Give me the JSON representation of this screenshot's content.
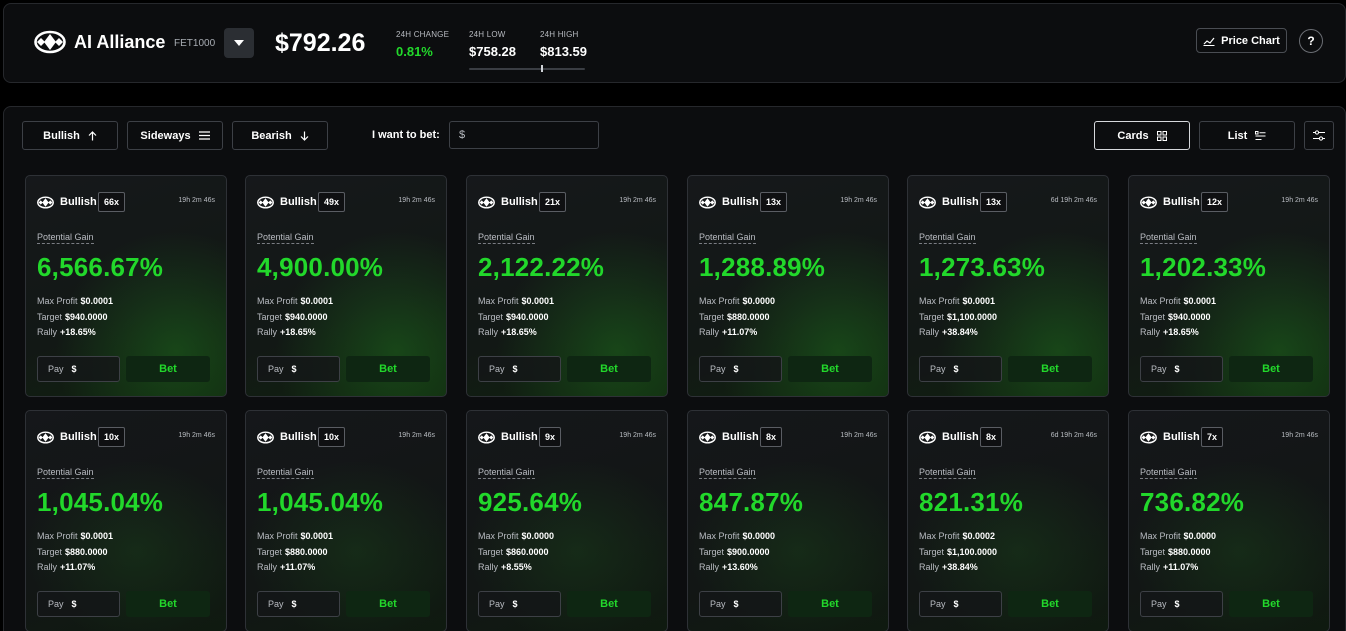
{
  "header": {
    "brand": "AI Alliance",
    "ticker": "FET1000",
    "price": "$792.26",
    "change_label": "24H CHANGE",
    "change_value": "0.81%",
    "low_label": "24H LOW",
    "low_value": "$758.28",
    "high_label": "24H HIGH",
    "high_value": "$813.59",
    "price_chart_label": "Price Chart",
    "help_label": "?"
  },
  "toolbar": {
    "bullish_label": "Bullish",
    "sideways_label": "Sideways",
    "bearish_label": "Bearish",
    "bet_label": "I want to bet:",
    "bet_placeholder": "$",
    "cards_label": "Cards",
    "list_label": "List"
  },
  "card_labels": {
    "potential_gain": "Potential Gain",
    "max_profit": "Max Profit",
    "target": "Target",
    "rally": "Rally",
    "pay": "Pay",
    "currency": "$",
    "bet": "Bet"
  },
  "cards": [
    {
      "direction": "Bullish",
      "multiplier": "66x",
      "time": "19h 2m 46s",
      "gain": "6,566.67%",
      "max_profit": "$0.0001",
      "target": "$940.0000",
      "rally": "+18.65%"
    },
    {
      "direction": "Bullish",
      "multiplier": "49x",
      "time": "19h 2m 46s",
      "gain": "4,900.00%",
      "max_profit": "$0.0001",
      "target": "$940.0000",
      "rally": "+18.65%"
    },
    {
      "direction": "Bullish",
      "multiplier": "21x",
      "time": "19h 2m 46s",
      "gain": "2,122.22%",
      "max_profit": "$0.0001",
      "target": "$940.0000",
      "rally": "+18.65%"
    },
    {
      "direction": "Bullish",
      "multiplier": "13x",
      "time": "19h 2m 46s",
      "gain": "1,288.89%",
      "max_profit": "$0.0000",
      "target": "$880.0000",
      "rally": "+11.07%"
    },
    {
      "direction": "Bullish",
      "multiplier": "13x",
      "time": "6d 19h 2m 46s",
      "gain": "1,273.63%",
      "max_profit": "$0.0001",
      "target": "$1,100.0000",
      "rally": "+38.84%"
    },
    {
      "direction": "Bullish",
      "multiplier": "12x",
      "time": "19h 2m 46s",
      "gain": "1,202.33%",
      "max_profit": "$0.0001",
      "target": "$940.0000",
      "rally": "+18.65%"
    },
    {
      "direction": "Bullish",
      "multiplier": "10x",
      "time": "19h 2m 46s",
      "gain": "1,045.04%",
      "max_profit": "$0.0001",
      "target": "$880.0000",
      "rally": "+11.07%"
    },
    {
      "direction": "Bullish",
      "multiplier": "10x",
      "time": "19h 2m 46s",
      "gain": "1,045.04%",
      "max_profit": "$0.0001",
      "target": "$880.0000",
      "rally": "+11.07%"
    },
    {
      "direction": "Bullish",
      "multiplier": "9x",
      "time": "19h 2m 46s",
      "gain": "925.64%",
      "max_profit": "$0.0000",
      "target": "$860.0000",
      "rally": "+8.55%"
    },
    {
      "direction": "Bullish",
      "multiplier": "8x",
      "time": "19h 2m 46s",
      "gain": "847.87%",
      "max_profit": "$0.0000",
      "target": "$900.0000",
      "rally": "+13.60%"
    },
    {
      "direction": "Bullish",
      "multiplier": "8x",
      "time": "6d 19h 2m 46s",
      "gain": "821.31%",
      "max_profit": "$0.0002",
      "target": "$1,100.0000",
      "rally": "+38.84%"
    },
    {
      "direction": "Bullish",
      "multiplier": "7x",
      "time": "19h 2m 46s",
      "gain": "736.82%",
      "max_profit": "$0.0000",
      "target": "$880.0000",
      "rally": "+11.07%"
    }
  ],
  "colors": {
    "positive": "#22d82b",
    "background": "#000000",
    "panel": "#0c0d0f",
    "border": "#26282c"
  },
  "icons": {
    "brand": "alliance-logo-icon",
    "dropdown": "chevron-down-icon",
    "price_chart": "line-chart-icon",
    "bullish": "arrow-up-icon",
    "sideways": "menu-lines-icon",
    "bearish": "arrow-down-icon",
    "cards": "grid-icon",
    "list": "list-icon",
    "filter": "sliders-icon"
  }
}
